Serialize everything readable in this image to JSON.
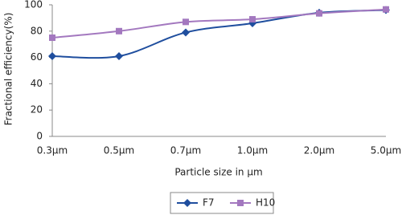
{
  "chart_data": {
    "type": "line",
    "y_label": "Fractional efficiency(%)",
    "x_label": "Particle size in µm",
    "categories": [
      "0.3µm",
      "0.5µm",
      "0.7µm",
      "1.0µm",
      "2.0µm",
      "5.0µm"
    ],
    "series": [
      {
        "name": "F7",
        "color": "#1f4e9e",
        "marker": "diamond",
        "values": [
          61,
          61,
          79,
          86,
          94,
          96
        ]
      },
      {
        "name": "H10",
        "color": "#a378bf",
        "marker": "square",
        "values": [
          75,
          80,
          87,
          89,
          93.5,
          96.5
        ]
      }
    ],
    "ylim": [
      0,
      100
    ],
    "yticks": [
      0,
      20,
      40,
      60,
      80,
      100
    ],
    "grid": false,
    "smooth": true,
    "legend": "bottom"
  }
}
